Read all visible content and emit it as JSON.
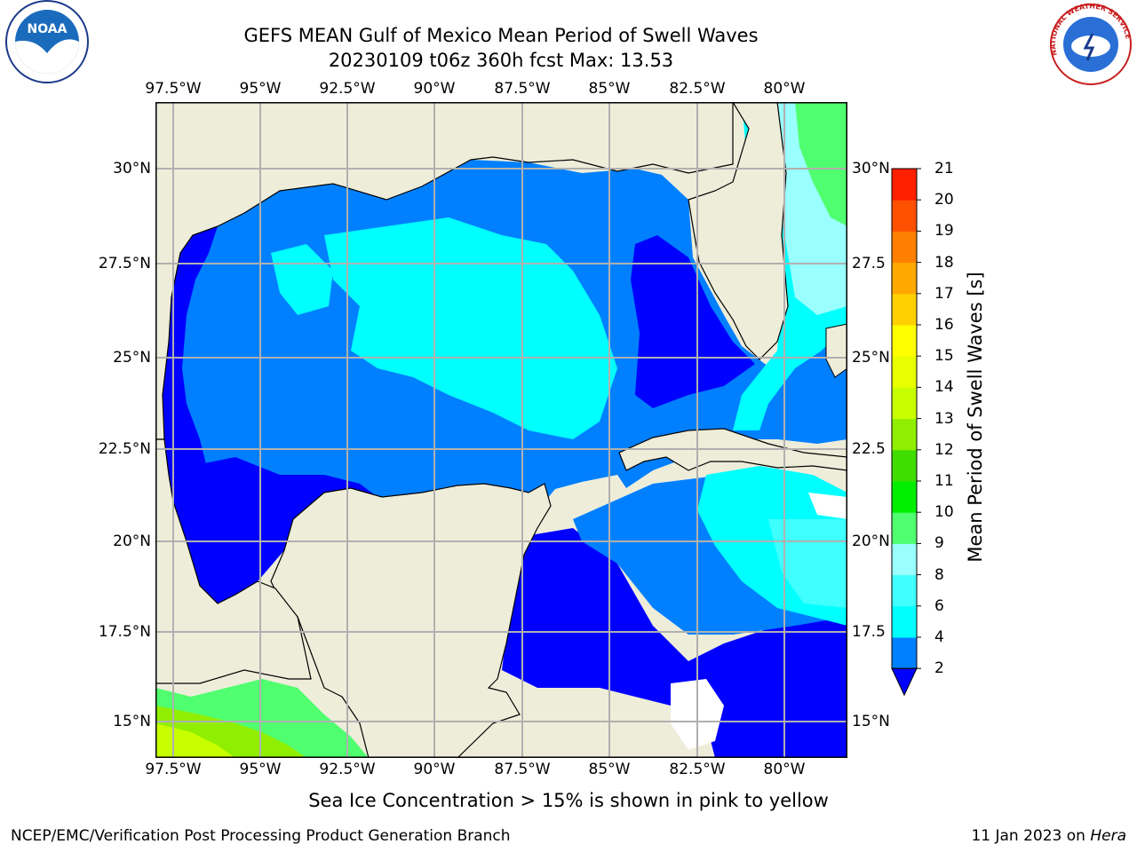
{
  "title": {
    "line1": "GEFS MEAN Gulf of Mexico Mean Period of Swell Waves",
    "line2": "20230109 t06z 360h fcst   Max: 13.53"
  },
  "map": {
    "lon_labels_top": [
      "97.5°W",
      "95°W",
      "92.5°W",
      "90°W",
      "87.5°W",
      "85°W",
      "82.5°W",
      "80°W"
    ],
    "lon_labels_bottom": [
      "97.5°W",
      "95°W",
      "92.5°W",
      "90°W",
      "87.5°W",
      "85°W",
      "82.5°W",
      "80°W"
    ],
    "lat_labels_left": [
      "30°N",
      "27.5°N",
      "25°N",
      "22.5°N",
      "20°N",
      "17.5°N",
      "15°N"
    ],
    "lat_labels_right": [
      "30°N",
      "27.5",
      "25°N",
      "22.5",
      "20°N",
      "17.5",
      "15°N"
    ],
    "land_color": "#eeedda",
    "grid_color": "#b0b0b0"
  },
  "colorbar": {
    "label": "Mean Period of Swell Waves [s]",
    "ticks": [
      "2",
      "4",
      "6",
      "8",
      "9",
      "10",
      "11",
      "12",
      "13",
      "14",
      "15",
      "16",
      "17",
      "18",
      "19",
      "20",
      "21"
    ],
    "colors": [
      "#0000ff",
      "#0080ff",
      "#00ffff",
      "#40ffff",
      "#99ffff",
      "#50ff70",
      "#00ee00",
      "#40dd00",
      "#90ee00",
      "#c8ff00",
      "#e8ff00",
      "#ffff00",
      "#ffd000",
      "#ffa800",
      "#ff8000",
      "#ff5000",
      "#ff2000",
      "#ff0000"
    ]
  },
  "note": "Sea Ice Concentration > 15% is shown in pink to yellow",
  "footer": {
    "left": "NCEP/EMC/Verification Post Processing Product Generation Branch",
    "right_date": "11 Jan 2023 on ",
    "right_host": "Hera"
  },
  "logos": {
    "noaa_text": "NOAA",
    "nws_text": "NATIONAL WEATHER SERVICE"
  }
}
